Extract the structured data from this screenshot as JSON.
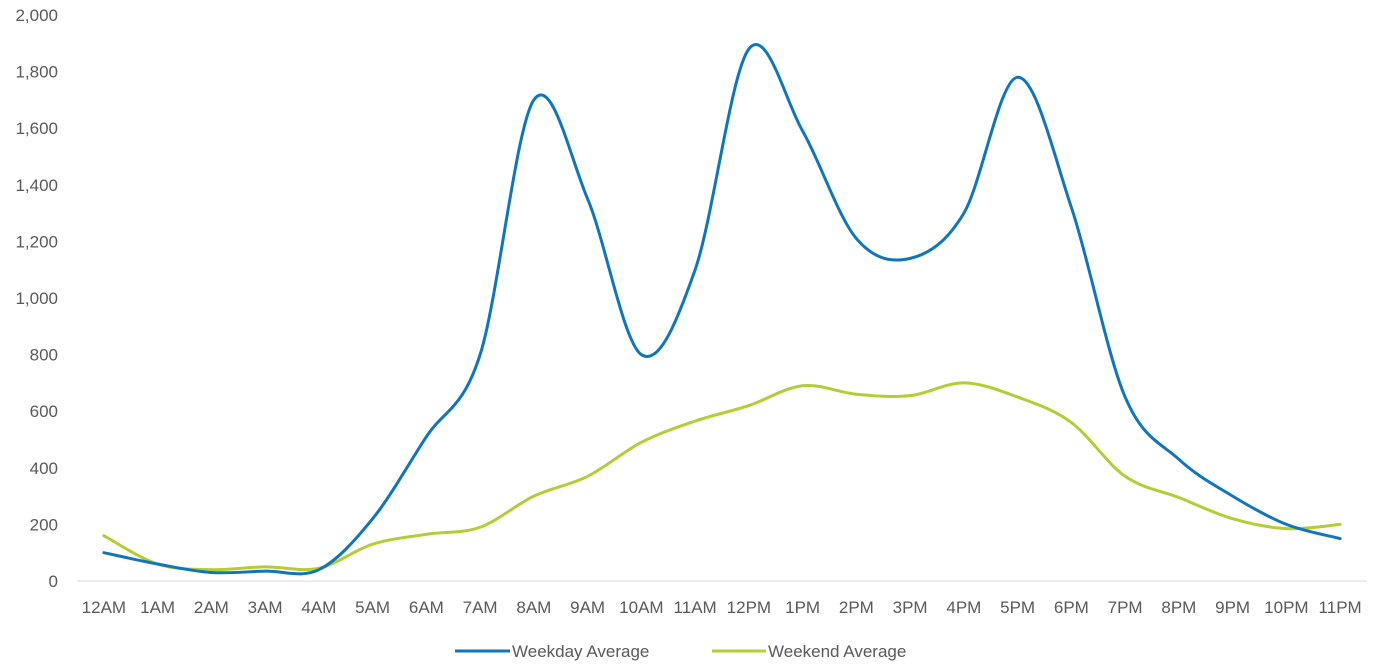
{
  "chart_data": {
    "type": "line",
    "title": "",
    "xlabel": "",
    "ylabel": "",
    "ylim": [
      0,
      2000
    ],
    "yticks": [
      0,
      200,
      400,
      600,
      800,
      1000,
      1200,
      1400,
      1600,
      1800,
      2000
    ],
    "ytick_labels": [
      "0",
      "200",
      "400",
      "600",
      "800",
      "1,000",
      "1,200",
      "1,400",
      "1,600",
      "1,800",
      "2,000"
    ],
    "categories": [
      "12AM",
      "1AM",
      "2AM",
      "3AM",
      "4AM",
      "5AM",
      "6AM",
      "7AM",
      "8AM",
      "9AM",
      "10AM",
      "11AM",
      "12PM",
      "1PM",
      "2PM",
      "3PM",
      "4PM",
      "5PM",
      "6PM",
      "7PM",
      "8PM",
      "9PM",
      "10PM",
      "11PM"
    ],
    "grid": false,
    "legend_position": "bottom",
    "series": [
      {
        "name": "Weekday Average",
        "color": "#0F75BC",
        "values": [
          100,
          60,
          30,
          35,
          40,
          220,
          510,
          800,
          1700,
          1350,
          800,
          1100,
          1880,
          1590,
          1210,
          1140,
          1300,
          1780,
          1320,
          650,
          430,
          300,
          200,
          150
        ]
      },
      {
        "name": "Weekend Average",
        "color": "#B5CC34",
        "values": [
          160,
          60,
          40,
          50,
          45,
          130,
          165,
          190,
          300,
          370,
          490,
          565,
          620,
          690,
          660,
          655,
          700,
          650,
          560,
          370,
          295,
          220,
          185,
          200
        ]
      }
    ]
  }
}
